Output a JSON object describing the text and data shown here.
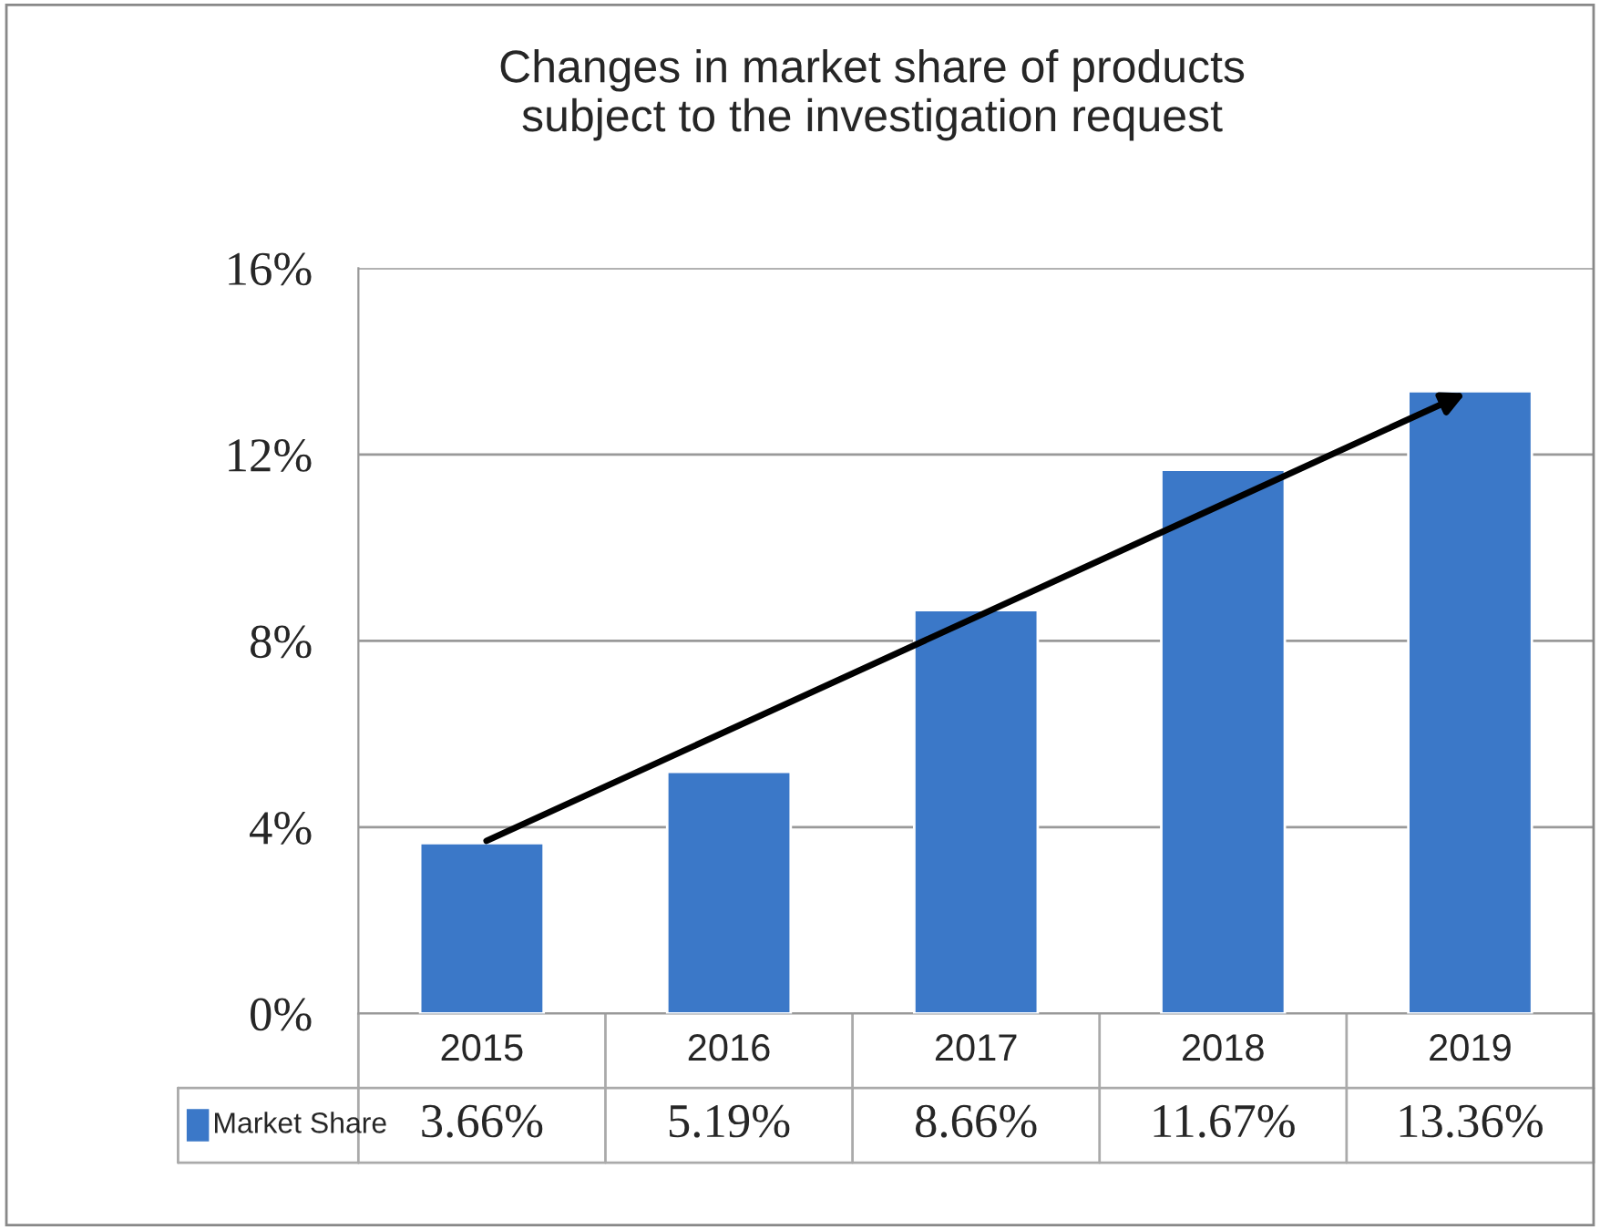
{
  "chart_data": {
    "type": "bar",
    "title": "Changes in market share of products\nsubject to the investigation request",
    "categories": [
      "2015",
      "2016",
      "2017",
      "2018",
      "2019"
    ],
    "series": [
      {
        "name": "Market Share",
        "color": "#3b78c8",
        "values": [
          3.66,
          5.19,
          8.66,
          11.67,
          13.36
        ],
        "value_labels": [
          "3.66%",
          "5.19%",
          "8.66%",
          "11.67%",
          "13.36%"
        ]
      }
    ],
    "ylim": [
      0,
      16
    ],
    "yticks": [
      {
        "value": 0,
        "label": "0%"
      },
      {
        "value": 4,
        "label": "4%"
      },
      {
        "value": 8,
        "label": "8%"
      },
      {
        "value": 12,
        "label": "12%"
      },
      {
        "value": 16,
        "label": "16%"
      }
    ],
    "grid": "y",
    "legend": "bottom left"
  }
}
